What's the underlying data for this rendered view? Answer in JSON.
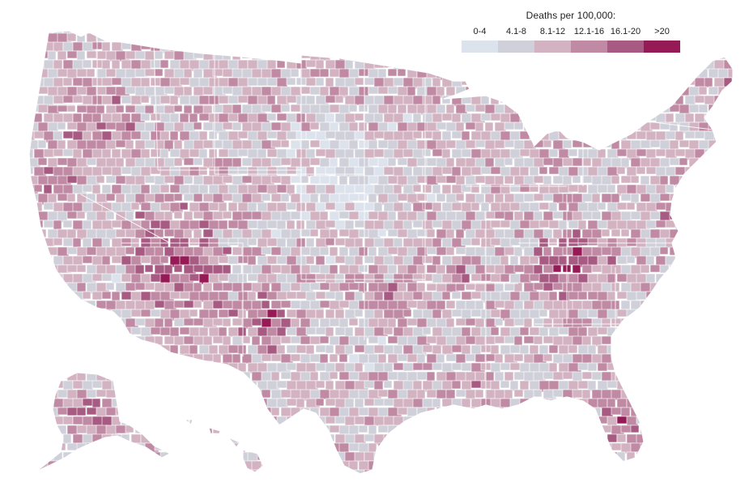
{
  "legend": {
    "title": "Deaths per 100,000:",
    "bins": [
      {
        "label": "0-4",
        "color": "#dde3ec"
      },
      {
        "label": "4.1-8",
        "color": "#cfd0da"
      },
      {
        "label": "8.1-12",
        "color": "#d3b3c2"
      },
      {
        "label": "12.1-16",
        "color": "#c08aa4"
      },
      {
        "label": "16.1-20",
        "color": "#a75a82"
      },
      {
        "label": ">20",
        "color": "#961a56"
      }
    ]
  },
  "map": {
    "subject": "county-level death rate choropleth",
    "regions": [
      "contiguous-us",
      "alaska",
      "hawaii"
    ],
    "border_color": "#ffffff"
  }
}
